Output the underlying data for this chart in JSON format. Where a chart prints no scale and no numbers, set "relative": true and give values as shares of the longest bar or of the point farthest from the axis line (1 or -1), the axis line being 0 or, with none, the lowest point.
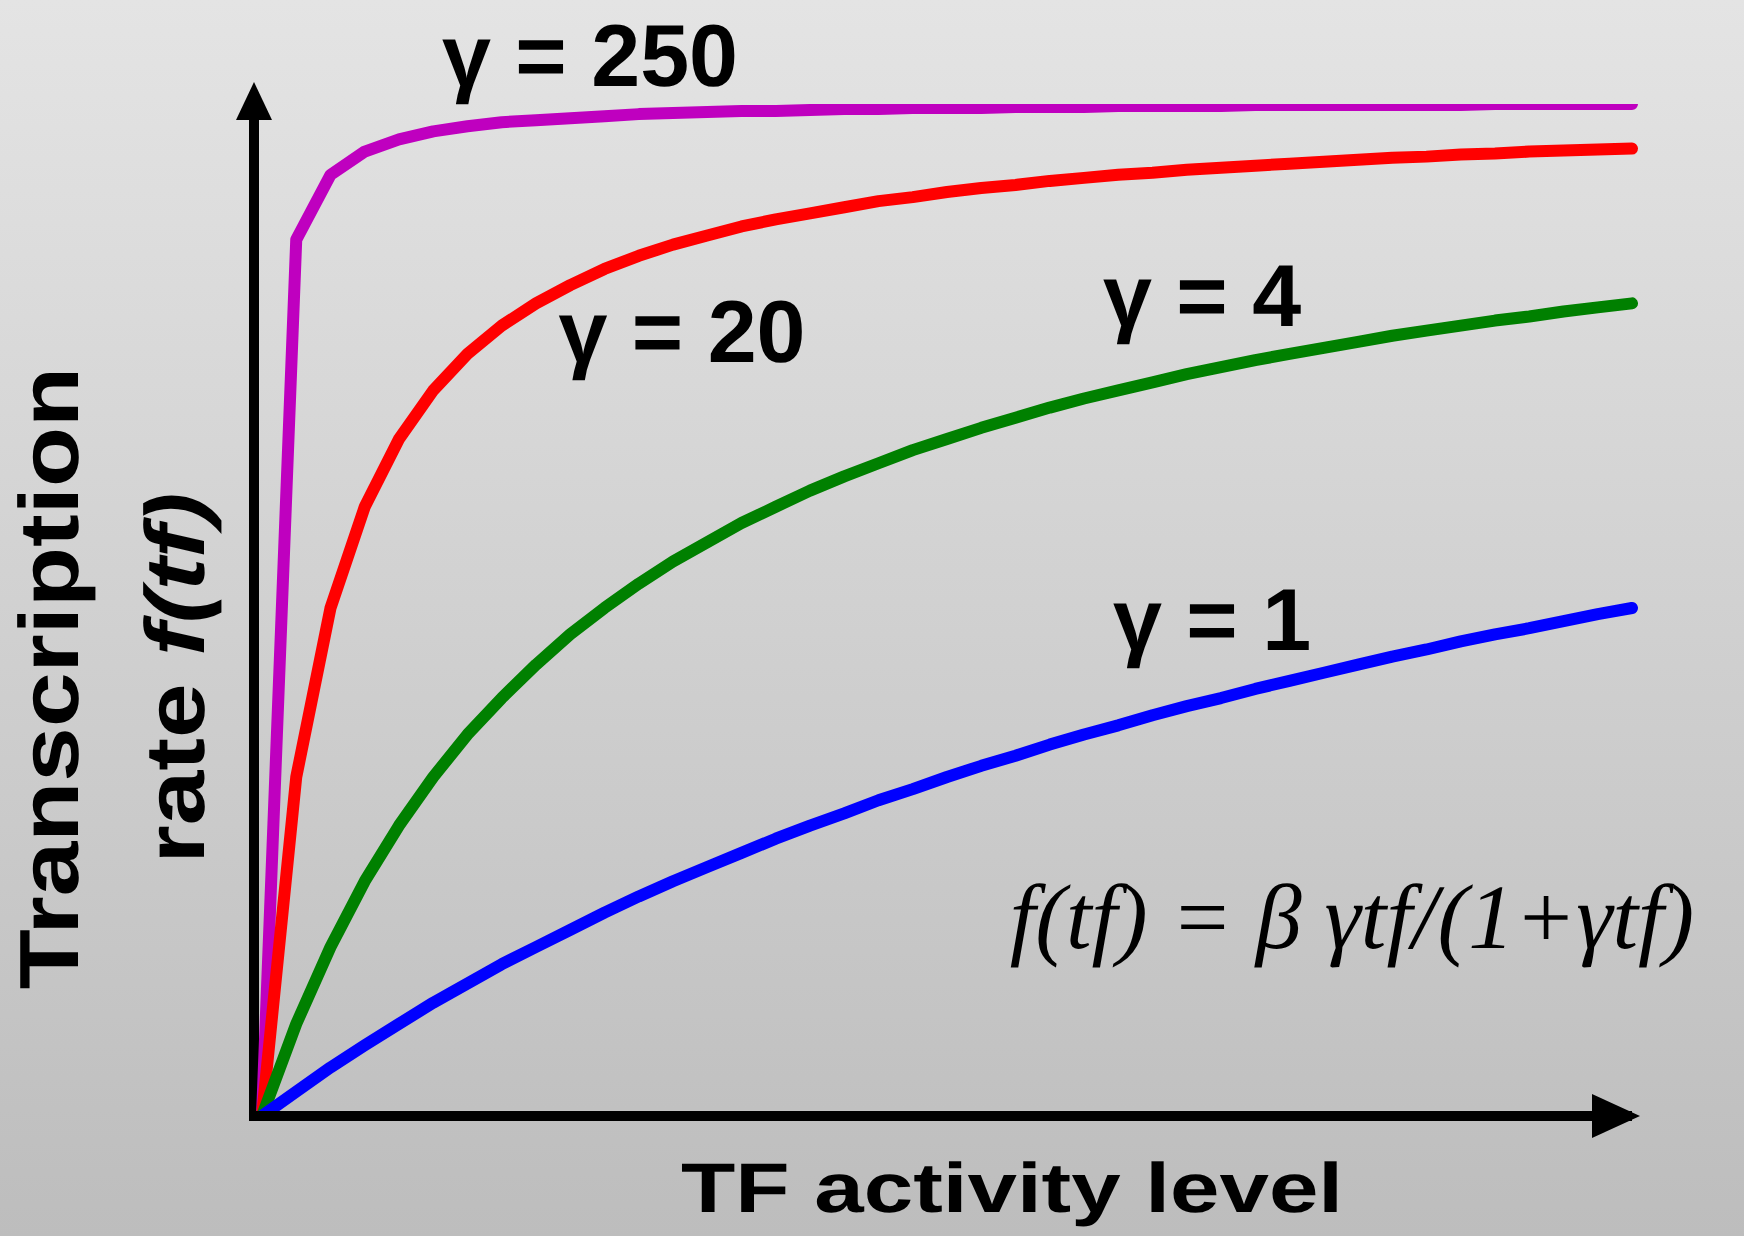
{
  "chart_data": {
    "type": "line",
    "relative": true,
    "xlabel": "TF activity level",
    "ylabel": "Transcription rate f(tf)",
    "marker": "none",
    "line_style": "solid",
    "annotations": [
      "f(tf) = β γtf/(1+γtf)"
    ],
    "categories": [
      null,
      null,
      null,
      null,
      null,
      null,
      null,
      null,
      null,
      null,
      null,
      null,
      null,
      null,
      null,
      null,
      null,
      null,
      null,
      null,
      null,
      null,
      null,
      null,
      null,
      null,
      null,
      null,
      null,
      null,
      null,
      null,
      null,
      null,
      null,
      null,
      null,
      null,
      null,
      null,
      null
    ],
    "series": [
      {
        "name": "γ = 250",
        "color": "#bf00bf",
        "values": [
          0,
          0.866,
          0.93,
          0.953,
          0.965,
          0.973,
          0.978,
          0.982,
          0.984,
          0.986,
          0.988,
          0.99,
          0.991,
          0.992,
          0.993,
          0.993,
          0.994,
          0.995,
          0.995,
          0.996,
          0.996,
          0.996,
          0.997,
          0.997,
          0.997,
          0.998,
          0.998,
          0.998,
          0.998,
          0.999,
          0.999,
          0.999,
          0.999,
          0.999,
          0.999,
          0.999,
          1,
          1,
          1,
          1,
          1
        ]
      },
      {
        "name": "γ = 20",
        "color": "#ff0000",
        "values": [
          0,
          0.335,
          0.502,
          0.602,
          0.669,
          0.717,
          0.753,
          0.781,
          0.803,
          0.821,
          0.837,
          0.85,
          0.861,
          0.87,
          0.879,
          0.886,
          0.892,
          0.898,
          0.904,
          0.908,
          0.913,
          0.917,
          0.92,
          0.924,
          0.927,
          0.93,
          0.932,
          0.935,
          0.937,
          0.939,
          0.941,
          0.943,
          0.945,
          0.947,
          0.948,
          0.95,
          0.951,
          0.953,
          0.954,
          0.955,
          0.956
        ]
      },
      {
        "name": "γ = 4",
        "color": "#008000",
        "values": [
          0,
          0.091,
          0.167,
          0.232,
          0.287,
          0.335,
          0.377,
          0.413,
          0.446,
          0.476,
          0.502,
          0.526,
          0.548,
          0.567,
          0.586,
          0.602,
          0.618,
          0.632,
          0.645,
          0.658,
          0.669,
          0.68,
          0.69,
          0.7,
          0.709,
          0.717,
          0.725,
          0.733,
          0.74,
          0.747,
          0.753,
          0.759,
          0.765,
          0.771,
          0.776,
          0.781,
          0.786,
          0.79,
          0.795,
          0.799,
          0.803
        ]
      },
      {
        "name": "γ = 1",
        "color": "#0000ff",
        "values": [
          0,
          0.024,
          0.048,
          0.07,
          0.091,
          0.112,
          0.131,
          0.15,
          0.167,
          0.184,
          0.201,
          0.217,
          0.232,
          0.246,
          0.26,
          0.274,
          0.287,
          0.299,
          0.312,
          0.323,
          0.335,
          0.346,
          0.356,
          0.367,
          0.377,
          0.386,
          0.396,
          0.405,
          0.413,
          0.422,
          0.43,
          0.438,
          0.446,
          0.454,
          0.461,
          0.469,
          0.476,
          0.482,
          0.489,
          0.496,
          0.502
        ]
      }
    ]
  }
}
